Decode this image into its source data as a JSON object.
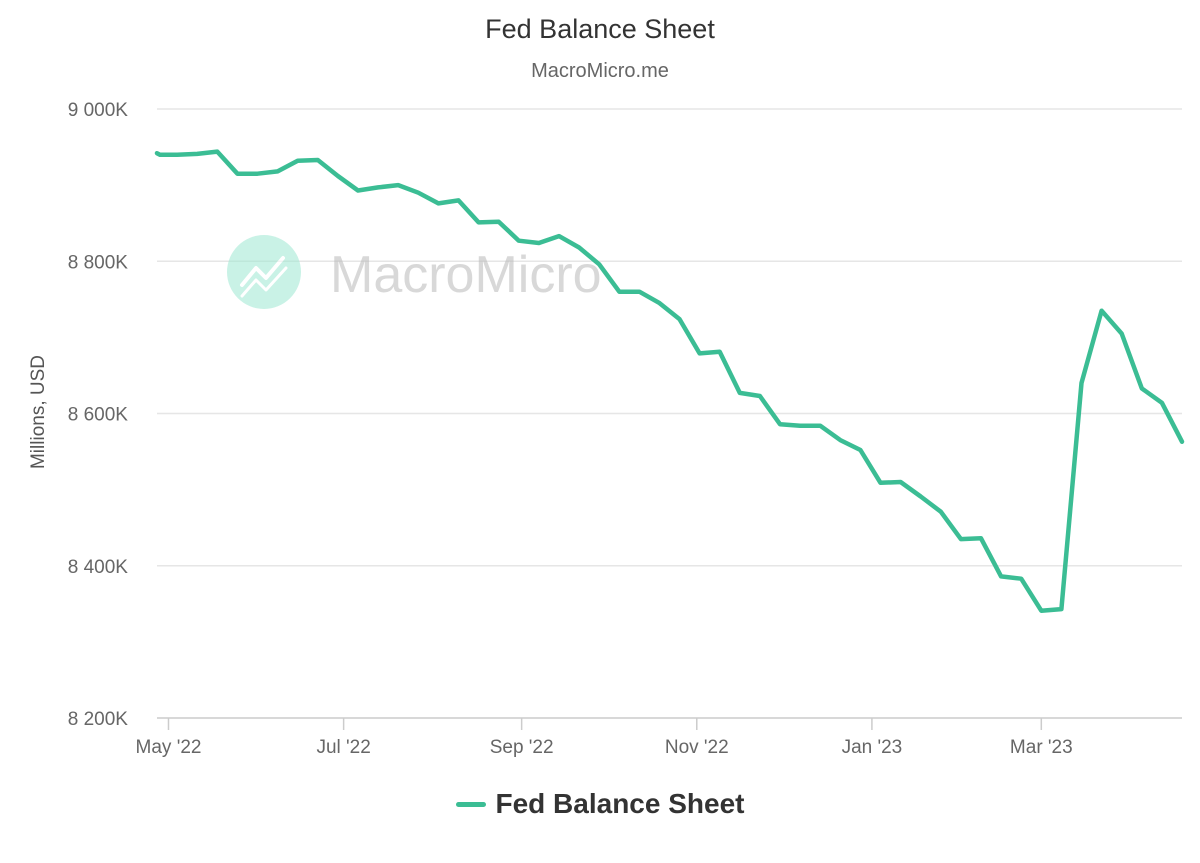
{
  "colors": {
    "line": "#3bbd94",
    "grid": "#e6e6e6",
    "watermark": "#9ee8d2"
  },
  "watermark": {
    "text": "MacroMicro",
    "icon": "chart-trend-icon"
  },
  "chart_data": {
    "type": "line",
    "title": "Fed Balance Sheet",
    "subtitle": "MacroMicro.me",
    "xlabel": "",
    "ylabel": "Millions, USD",
    "ylim": [
      8200000,
      9000000
    ],
    "xlim": [
      "2022-04-27",
      "2023-04-19"
    ],
    "yticks": [
      {
        "value": 9000000,
        "label": "9 000K"
      },
      {
        "value": 8800000,
        "label": "8 800K"
      },
      {
        "value": 8600000,
        "label": "8 600K"
      },
      {
        "value": 8400000,
        "label": "8 400K"
      },
      {
        "value": 8200000,
        "label": "8 200K"
      }
    ],
    "xticks": [
      {
        "date": "2022-05-01",
        "label": "May '22"
      },
      {
        "date": "2022-07-01",
        "label": "Jul '22"
      },
      {
        "date": "2022-09-01",
        "label": "Sep '22"
      },
      {
        "date": "2022-11-01",
        "label": "Nov '22"
      },
      {
        "date": "2023-01-01",
        "label": "Jan '23"
      },
      {
        "date": "2023-03-01",
        "label": "Mar '23"
      }
    ],
    "grid": true,
    "legend": "bottom-center",
    "series": [
      {
        "name": "Fed Balance Sheet",
        "points": [
          [
            "2022-04-27",
            8942000
          ],
          [
            "2022-04-28",
            8940000
          ],
          [
            "2022-05-04",
            8940000
          ],
          [
            "2022-05-11",
            8941000
          ],
          [
            "2022-05-18",
            8944000
          ],
          [
            "2022-05-25",
            8915000
          ],
          [
            "2022-06-01",
            8915000
          ],
          [
            "2022-06-08",
            8918000
          ],
          [
            "2022-06-15",
            8932000
          ],
          [
            "2022-06-22",
            8933000
          ],
          [
            "2022-06-29",
            8912000
          ],
          [
            "2022-07-06",
            8893000
          ],
          [
            "2022-07-13",
            8897000
          ],
          [
            "2022-07-20",
            8900000
          ],
          [
            "2022-07-27",
            8890000
          ],
          [
            "2022-08-03",
            8876000
          ],
          [
            "2022-08-10",
            8880000
          ],
          [
            "2022-08-17",
            8851000
          ],
          [
            "2022-08-24",
            8852000
          ],
          [
            "2022-08-31",
            8827000
          ],
          [
            "2022-09-07",
            8824000
          ],
          [
            "2022-09-14",
            8833000
          ],
          [
            "2022-09-21",
            8818000
          ],
          [
            "2022-09-28",
            8796000
          ],
          [
            "2022-10-05",
            8760000
          ],
          [
            "2022-10-12",
            8760000
          ],
          [
            "2022-10-19",
            8745000
          ],
          [
            "2022-10-26",
            8724000
          ],
          [
            "2022-11-02",
            8679000
          ],
          [
            "2022-11-09",
            8681000
          ],
          [
            "2022-11-16",
            8627000
          ],
          [
            "2022-11-23",
            8623000
          ],
          [
            "2022-11-30",
            8586000
          ],
          [
            "2022-12-07",
            8584000
          ],
          [
            "2022-12-14",
            8584000
          ],
          [
            "2022-12-21",
            8565000
          ],
          [
            "2022-12-28",
            8552000
          ],
          [
            "2023-01-04",
            8509000
          ],
          [
            "2023-01-11",
            8510000
          ],
          [
            "2023-01-18",
            8491000
          ],
          [
            "2023-01-25",
            8471000
          ],
          [
            "2023-02-01",
            8435000
          ],
          [
            "2023-02-08",
            8436000
          ],
          [
            "2023-02-15",
            8386000
          ],
          [
            "2023-02-22",
            8383000
          ],
          [
            "2023-03-01",
            8341000
          ],
          [
            "2023-03-08",
            8343000
          ],
          [
            "2023-03-15",
            8640000
          ],
          [
            "2023-03-22",
            8735000
          ],
          [
            "2023-03-29",
            8705000
          ],
          [
            "2023-04-05",
            8633000
          ],
          [
            "2023-04-12",
            8614000
          ],
          [
            "2023-04-19",
            8563000
          ]
        ]
      }
    ]
  }
}
